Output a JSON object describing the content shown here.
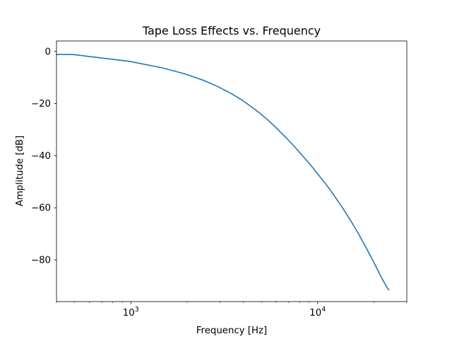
{
  "chart_data": {
    "type": "line",
    "title": "Tape Loss Effects vs. Frequency",
    "xlabel": "Frequency [Hz]",
    "ylabel": "Amplitude [dB]",
    "xscale": "log",
    "xlim": [
      400,
      30000
    ],
    "ylim": [
      -96,
      4
    ],
    "grid": false,
    "x_ticks": [
      {
        "value": 1000,
        "base": "10",
        "exp": "3"
      },
      {
        "value": 10000,
        "base": "10",
        "exp": "4"
      }
    ],
    "y_ticks": [
      {
        "value": 0,
        "label": "0"
      },
      {
        "value": -20,
        "label": "−20"
      },
      {
        "value": -40,
        "label": "−40"
      },
      {
        "value": -60,
        "label": "−60"
      },
      {
        "value": -80,
        "label": "−80"
      }
    ],
    "series": [
      {
        "color": "#1f77b4",
        "x": [
          400,
          490,
          980,
          1470,
          1960,
          2450,
          2940,
          3430,
          3920,
          4410,
          4900,
          5390,
          5880,
          6370,
          6860,
          7350,
          7840,
          8330,
          8820,
          9310,
          9800,
          10290,
          10780,
          11270,
          11760,
          12250,
          12740,
          13230,
          13720,
          14210,
          14700,
          15190,
          15680,
          16170,
          16660,
          17150,
          17640,
          18130,
          18620,
          19110,
          19600,
          20090,
          20580,
          21070,
          21560,
          22050,
          22540,
          23030,
          23520,
          24010
        ],
        "y": [
          -1.2,
          -1.2,
          -3.8,
          -6.3,
          -8.7,
          -11.1,
          -13.6,
          -16.1,
          -18.6,
          -21.2,
          -23.7,
          -26.2,
          -28.7,
          -31.2,
          -33.5,
          -35.8,
          -38.0,
          -40.2,
          -42.2,
          -44.2,
          -46.2,
          -48.1,
          -49.9,
          -51.7,
          -53.5,
          -55.3,
          -57.1,
          -58.8,
          -60.5,
          -62.2,
          -63.9,
          -65.5,
          -67.2,
          -68.8,
          -70.4,
          -72.1,
          -73.6,
          -75.2,
          -76.8,
          -78.3,
          -79.8,
          -81.3,
          -82.8,
          -84.2,
          -85.7,
          -87.0,
          -88.3,
          -89.5,
          -90.6,
          -91.5
        ]
      }
    ]
  }
}
